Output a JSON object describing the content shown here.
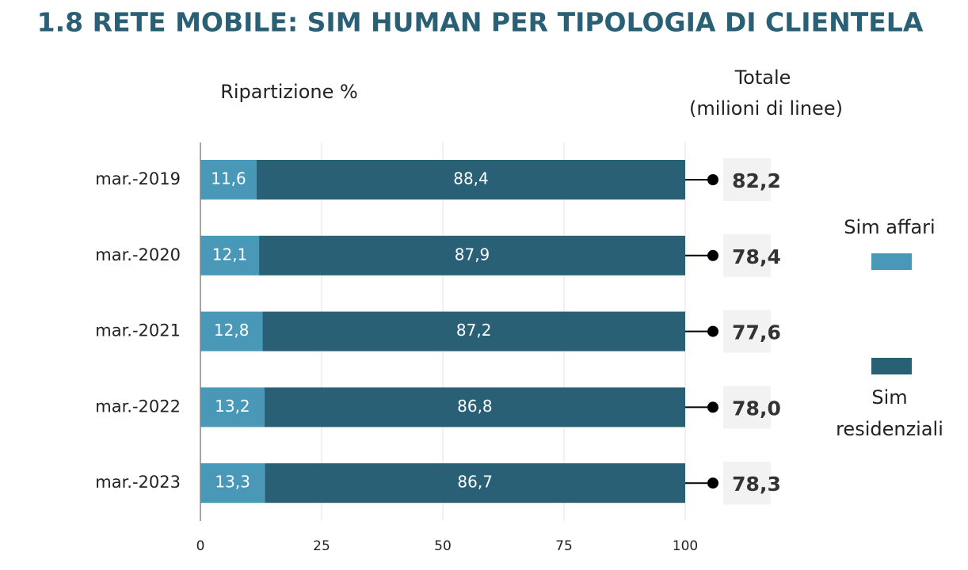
{
  "chart_data": {
    "type": "stacked-barh",
    "title": "1.8 RETE MOBILE: SIM HUMAN PER TIPOLOGIA DI CLIENTELA",
    "subtitle": "Ripartizione %",
    "categories": [
      "mar.-2019",
      "mar.-2020",
      "mar.-2021",
      "mar.-2022",
      "mar.-2023"
    ],
    "series": [
      {
        "name": "Sim affari",
        "color": "#4a98b8",
        "values": [
          11.6,
          12.1,
          12.8,
          13.2,
          13.3
        ],
        "value_labels": [
          "11,6",
          "12,1",
          "12,8",
          "13,2",
          "13,3"
        ]
      },
      {
        "name": "Sim residenziali",
        "color": "#2a6075",
        "values": [
          88.4,
          87.9,
          87.2,
          86.8,
          86.7
        ],
        "value_labels": [
          "88,4",
          "87,9",
          "87,2",
          "86,8",
          "86,7"
        ]
      }
    ],
    "totals": {
      "header": [
        "Totale",
        "(milioni di linee)"
      ],
      "values": [
        82.2,
        78.4,
        77.6,
        78.0,
        78.3
      ],
      "value_labels": [
        "82,2",
        "78,4",
        "77,6",
        "78,0",
        "78,3"
      ]
    },
    "xlim": [
      0,
      100
    ],
    "xticks": [
      0,
      25,
      50,
      75,
      100
    ],
    "grid": true
  }
}
